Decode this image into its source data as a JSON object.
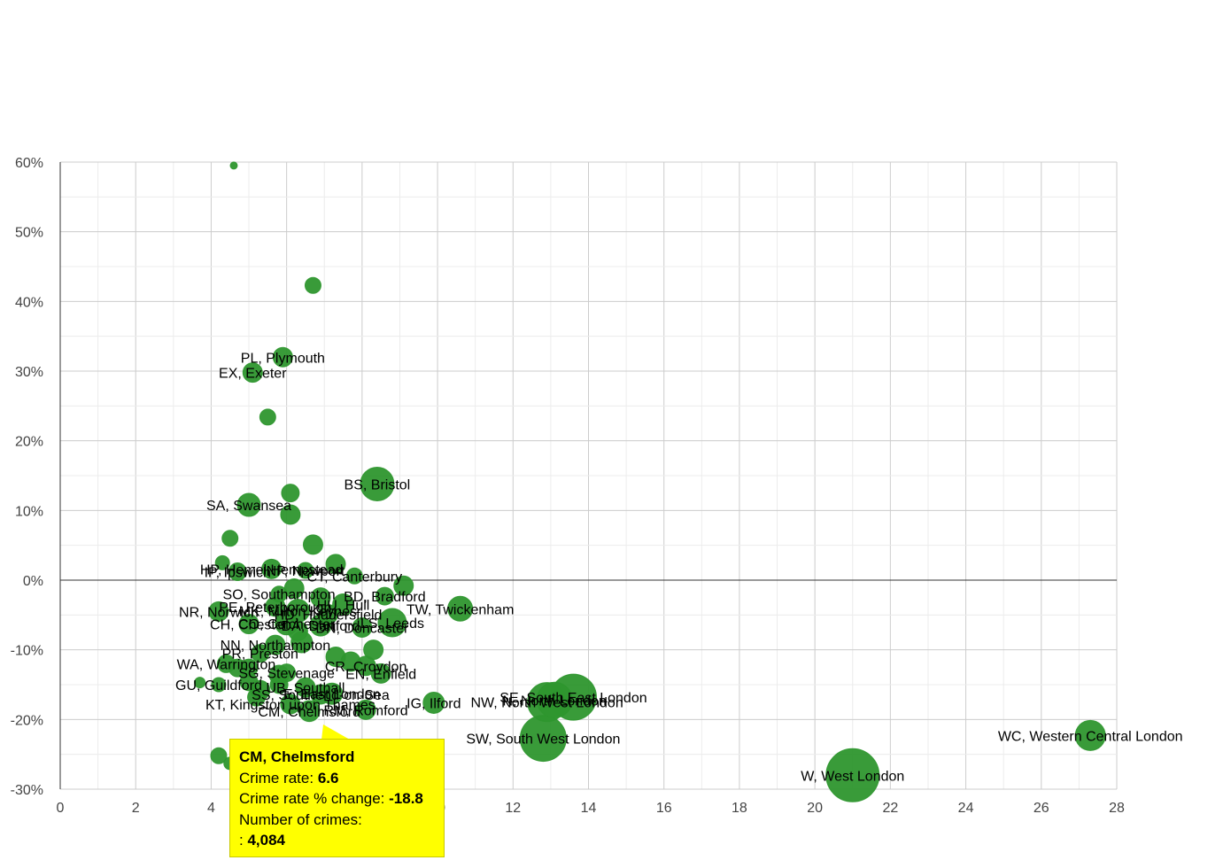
{
  "chart_data": {
    "type": "scatter",
    "title": "",
    "xlabel": "",
    "ylabel": "",
    "xlim": [
      0,
      28
    ],
    "ylim": [
      -30,
      60
    ],
    "x_ticks": [
      0,
      2,
      4,
      6,
      8,
      10,
      12,
      14,
      16,
      18,
      20,
      22,
      24,
      26,
      28
    ],
    "y_ticks": [
      -30,
      -20,
      -10,
      0,
      10,
      20,
      30,
      40,
      50,
      60
    ],
    "y_tick_labels": [
      "-30%",
      "-20%",
      "-10%",
      "0%",
      "10%",
      "20%",
      "30%",
      "40%",
      "50%",
      "60%"
    ],
    "x_tick_labels": [
      "0",
      "2",
      "4",
      "6",
      "8",
      "10",
      "12",
      "14",
      "16",
      "18",
      "20",
      "22",
      "24",
      "26",
      "28"
    ],
    "grid": true,
    "bubble_color": "#2e962e",
    "points": [
      {
        "x": 4.6,
        "y": 59.5,
        "r": 4,
        "label": ""
      },
      {
        "x": 6.7,
        "y": 42.3,
        "r": 9,
        "label": ""
      },
      {
        "x": 5.9,
        "y": 32.0,
        "r": 11,
        "label": "PL, Plymouth"
      },
      {
        "x": 5.1,
        "y": 29.8,
        "r": 11,
        "label": "EX, Exeter"
      },
      {
        "x": 5.5,
        "y": 23.4,
        "r": 9,
        "label": ""
      },
      {
        "x": 8.4,
        "y": 13.8,
        "r": 19,
        "label": "BS, Bristol"
      },
      {
        "x": 6.1,
        "y": 12.5,
        "r": 10,
        "label": ""
      },
      {
        "x": 5.0,
        "y": 10.8,
        "r": 13,
        "label": "SA, Swansea"
      },
      {
        "x": 6.1,
        "y": 9.4,
        "r": 11,
        "label": ""
      },
      {
        "x": 4.5,
        "y": 6.0,
        "r": 9,
        "label": ""
      },
      {
        "x": 6.7,
        "y": 5.1,
        "r": 11,
        "label": ""
      },
      {
        "x": 4.3,
        "y": 2.5,
        "r": 8,
        "label": ""
      },
      {
        "x": 4.7,
        "y": 1.2,
        "r": 10,
        "label": "IP, Ipswich"
      },
      {
        "x": 5.6,
        "y": 1.6,
        "r": 11,
        "label": "HP, Hemel Hempstead"
      },
      {
        "x": 7.3,
        "y": 2.3,
        "r": 11,
        "label": ""
      },
      {
        "x": 6.5,
        "y": 1.4,
        "r": 9,
        "label": "NP, Newport"
      },
      {
        "x": 7.8,
        "y": 0.6,
        "r": 9,
        "label": "CT, Canterbury"
      },
      {
        "x": 9.1,
        "y": -0.8,
        "r": 11,
        "label": ""
      },
      {
        "x": 6.2,
        "y": -1.2,
        "r": 11,
        "label": ""
      },
      {
        "x": 5.8,
        "y": -2.0,
        "r": 9,
        "label": "SO, Southampton"
      },
      {
        "x": 6.9,
        "y": -2.5,
        "r": 11,
        "label": ""
      },
      {
        "x": 8.6,
        "y": -2.3,
        "r": 10,
        "label": "BD, Bradford"
      },
      {
        "x": 10.6,
        "y": -4.1,
        "r": 14,
        "label": "TW, Twickenham"
      },
      {
        "x": 7.5,
        "y": -3.5,
        "r": 12,
        "label": "HU, Hull"
      },
      {
        "x": 5.7,
        "y": -3.8,
        "r": 11,
        "label": "PE, Peterborough"
      },
      {
        "x": 6.3,
        "y": -4.4,
        "r": 13,
        "label": "MK, Milton Keynes"
      },
      {
        "x": 7.1,
        "y": -4.9,
        "r": 11,
        "label": "HD, Huddersfield"
      },
      {
        "x": 8.8,
        "y": -6.1,
        "r": 16,
        "label": "LS, Leeds"
      },
      {
        "x": 4.2,
        "y": -4.5,
        "r": 11,
        "label": "NR, Norwich"
      },
      {
        "x": 6.0,
        "y": -6.2,
        "r": 13,
        "label": "CO, Colchester"
      },
      {
        "x": 5.0,
        "y": -6.3,
        "r": 11,
        "label": "CH, Chester"
      },
      {
        "x": 6.9,
        "y": -6.5,
        "r": 12,
        "label": "DA, Dartford"
      },
      {
        "x": 8.0,
        "y": -6.8,
        "r": 11,
        "label": "DN, Doncaster"
      },
      {
        "x": 6.3,
        "y": -7.3,
        "r": 11,
        "label": ""
      },
      {
        "x": 5.7,
        "y": -9.3,
        "r": 11,
        "label": "NN, Northampton"
      },
      {
        "x": 6.4,
        "y": -8.9,
        "r": 12,
        "label": ""
      },
      {
        "x": 8.3,
        "y": -10.0,
        "r": 11,
        "label": ""
      },
      {
        "x": 5.3,
        "y": -10.5,
        "r": 10,
        "label": "PR, Preston"
      },
      {
        "x": 7.3,
        "y": -11.0,
        "r": 11,
        "label": ""
      },
      {
        "x": 7.7,
        "y": -11.7,
        "r": 11,
        "label": ""
      },
      {
        "x": 4.4,
        "y": -12.0,
        "r": 10,
        "label": "WA, Warrington"
      },
      {
        "x": 4.7,
        "y": -12.6,
        "r": 10,
        "label": ""
      },
      {
        "x": 5.0,
        "y": -12.6,
        "r": 10,
        "label": ""
      },
      {
        "x": 8.1,
        "y": -12.3,
        "r": 11,
        "label": "CR, Croydon"
      },
      {
        "x": 8.5,
        "y": -13.4,
        "r": 11,
        "label": "EN, Enfield"
      },
      {
        "x": 5.8,
        "y": -13.6,
        "r": 11,
        "label": ""
      },
      {
        "x": 6.0,
        "y": -13.3,
        "r": 10,
        "label": "SG, Stevenage"
      },
      {
        "x": 3.7,
        "y": -14.7,
        "r": 6,
        "label": ""
      },
      {
        "x": 4.2,
        "y": -15.0,
        "r": 8,
        "label": "GU, Guildford"
      },
      {
        "x": 5.0,
        "y": -14.6,
        "r": 10,
        "label": ""
      },
      {
        "x": 5.3,
        "y": -15.8,
        "r": 11,
        "label": ""
      },
      {
        "x": 5.8,
        "y": -15.0,
        "r": 10,
        "label": ""
      },
      {
        "x": 6.5,
        "y": -15.4,
        "r": 11,
        "label": "UB, Southall"
      },
      {
        "x": 6.9,
        "y": -16.4,
        "r": 11,
        "label": "SS, Southend-on-Sea"
      },
      {
        "x": 7.2,
        "y": -16.3,
        "r": 12,
        "label": "E, East London"
      },
      {
        "x": 5.2,
        "y": -16.8,
        "r": 10,
        "label": ""
      },
      {
        "x": 6.1,
        "y": -17.8,
        "r": 11,
        "label": "KT, Kingston upon Thames"
      },
      {
        "x": 8.1,
        "y": -18.6,
        "r": 11,
        "label": "RM, Romford"
      },
      {
        "x": 9.9,
        "y": -17.6,
        "r": 12,
        "label": "IG, Ilford"
      },
      {
        "x": 6.6,
        "y": -18.8,
        "r": 13,
        "label": "CM, Chelmsford",
        "highlight": true
      },
      {
        "x": 12.9,
        "y": -17.5,
        "r": 22,
        "label": "NW, North West London"
      },
      {
        "x": 13.1,
        "y": -17.2,
        "r": 20,
        "label": "N, North London"
      },
      {
        "x": 13.6,
        "y": -16.8,
        "r": 26,
        "label": "SE, South East London"
      },
      {
        "x": 12.8,
        "y": -22.7,
        "r": 26,
        "label": "SW, South West London"
      },
      {
        "x": 27.3,
        "y": -22.3,
        "r": 17,
        "label": "WC, Western Central London"
      },
      {
        "x": 21.0,
        "y": -28.0,
        "r": 30,
        "label": "W, West London"
      },
      {
        "x": 4.2,
        "y": -25.2,
        "r": 9,
        "label": ""
      },
      {
        "x": 4.5,
        "y": -26.3,
        "r": 7,
        "label": ""
      }
    ],
    "tooltip": {
      "title": "CM, Chelmsford",
      "crime_rate_label": "Crime rate:",
      "crime_rate_value": "6.6",
      "change_label": "Crime rate % change:",
      "change_value": "-18.8",
      "count_label": "Number of crimes:",
      "count_prefix": ":",
      "count_value": "4,084"
    }
  }
}
